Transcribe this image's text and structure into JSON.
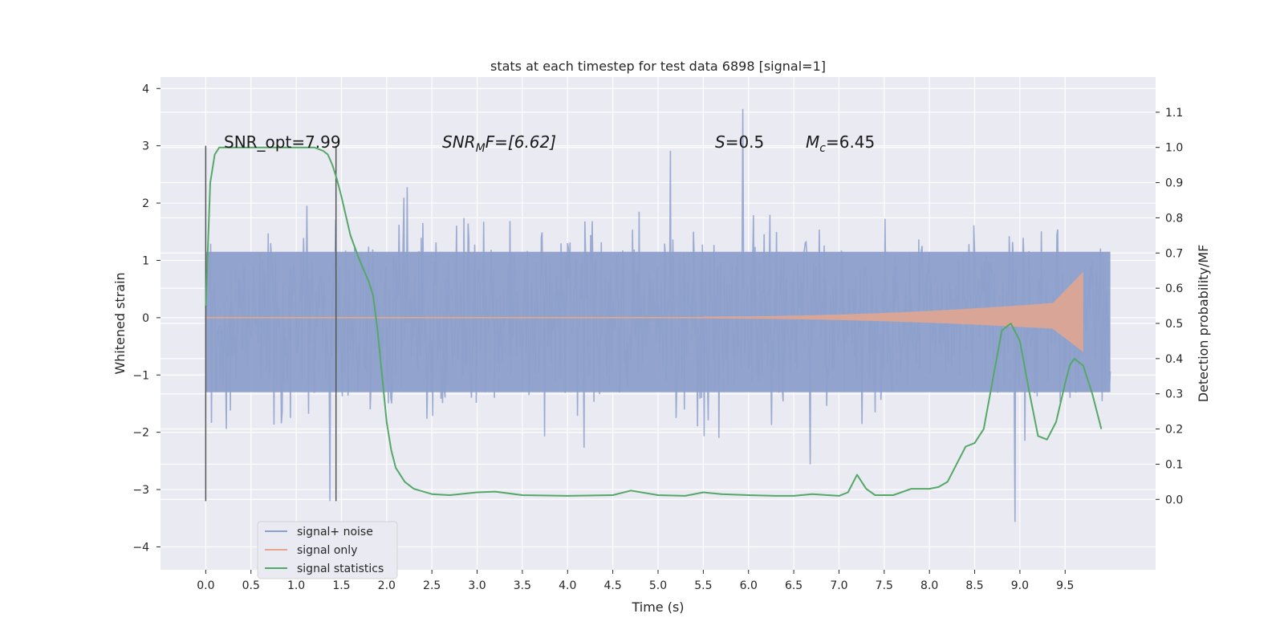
{
  "chart_data": {
    "type": "line",
    "title": "stats at each timestep for test data 6898 [signal=1]",
    "xlabel": "Time (s)",
    "ylabel": "Whitened strain",
    "ylabel_right": "Detection probability/MF",
    "xlim": [
      -0.5,
      10.5
    ],
    "ylim": [
      -4.4,
      4.2
    ],
    "ylim_right": [
      -0.2,
      1.2
    ],
    "x_ticks": [
      "0.0",
      "0.5",
      "1.0",
      "1.5",
      "2.0",
      "2.5",
      "3.0",
      "3.5",
      "4.0",
      "4.5",
      "5.0",
      "5.5",
      "6.0",
      "6.5",
      "7.0",
      "7.5",
      "8.0",
      "8.5",
      "9.0",
      "9.5"
    ],
    "y_ticks": [
      "4",
      "3",
      "2",
      "1",
      "0",
      "−1",
      "−2",
      "−3",
      "−4"
    ],
    "y_ticks_right": [
      "1.1",
      "1.0",
      "0.9",
      "0.8",
      "0.7",
      "0.6",
      "0.5",
      "0.4",
      "0.3",
      "0.2",
      "0.1",
      "0.0"
    ],
    "grid": true,
    "legend_position": "lower-left",
    "annotations": {
      "snr_opt": "SNR_opt=7.99",
      "snr_mf_base": "SNR",
      "snr_mf_sub": "M",
      "snr_mf_rest": "F=[6.62]",
      "s_base": "S",
      "s_rest": "=0.5",
      "mc_base": "M",
      "mc_sub": "c",
      "mc_rest": "=6.45"
    },
    "vlines_x": [
      0.0,
      1.44
    ],
    "series": [
      {
        "name": "signal+ noise",
        "color": "#8da0cb",
        "description_values": {
          "x_range": [
            0.0,
            10.0
          ],
          "envelope_low": -2.0,
          "envelope_high": 2.2
        }
      },
      {
        "name": "signal only",
        "color": "#e5a68c",
        "chirp": {
          "start": 5.5,
          "end": 9.7,
          "peak_amplitude": 0.8
        }
      },
      {
        "name": "signal statistics",
        "color": "#55a868",
        "x": [
          0.0,
          0.05,
          0.1,
          0.15,
          0.2,
          0.4,
          0.6,
          0.8,
          1.0,
          1.1,
          1.2,
          1.3,
          1.35,
          1.4,
          1.45,
          1.5,
          1.6,
          1.7,
          1.8,
          1.85,
          1.9,
          1.95,
          2.0,
          2.05,
          2.1,
          2.2,
          2.3,
          2.5,
          2.7,
          3.0,
          3.2,
          3.5,
          4.0,
          4.5,
          4.7,
          5.0,
          5.3,
          5.5,
          5.7,
          6.0,
          6.3,
          6.5,
          6.7,
          7.0,
          7.1,
          7.2,
          7.3,
          7.4,
          7.6,
          7.8,
          8.0,
          8.1,
          8.2,
          8.3,
          8.4,
          8.5,
          8.6,
          8.7,
          8.8,
          8.9,
          9.0,
          9.1,
          9.2,
          9.3,
          9.4,
          9.5,
          9.55,
          9.6,
          9.7,
          9.8,
          9.9
        ],
        "y": [
          0.55,
          0.9,
          0.98,
          1.0,
          1.0,
          1.0,
          1.0,
          1.0,
          1.0,
          1.0,
          1.0,
          0.99,
          0.98,
          0.95,
          0.91,
          0.86,
          0.75,
          0.68,
          0.62,
          0.58,
          0.48,
          0.35,
          0.22,
          0.14,
          0.09,
          0.05,
          0.03,
          0.015,
          0.012,
          0.02,
          0.022,
          0.012,
          0.01,
          0.012,
          0.025,
          0.012,
          0.01,
          0.02,
          0.015,
          0.012,
          0.01,
          0.01,
          0.015,
          0.01,
          0.02,
          0.07,
          0.03,
          0.012,
          0.012,
          0.03,
          0.03,
          0.035,
          0.05,
          0.1,
          0.15,
          0.16,
          0.2,
          0.34,
          0.48,
          0.5,
          0.45,
          0.31,
          0.18,
          0.17,
          0.22,
          0.33,
          0.38,
          0.4,
          0.38,
          0.3,
          0.2
        ]
      }
    ]
  }
}
